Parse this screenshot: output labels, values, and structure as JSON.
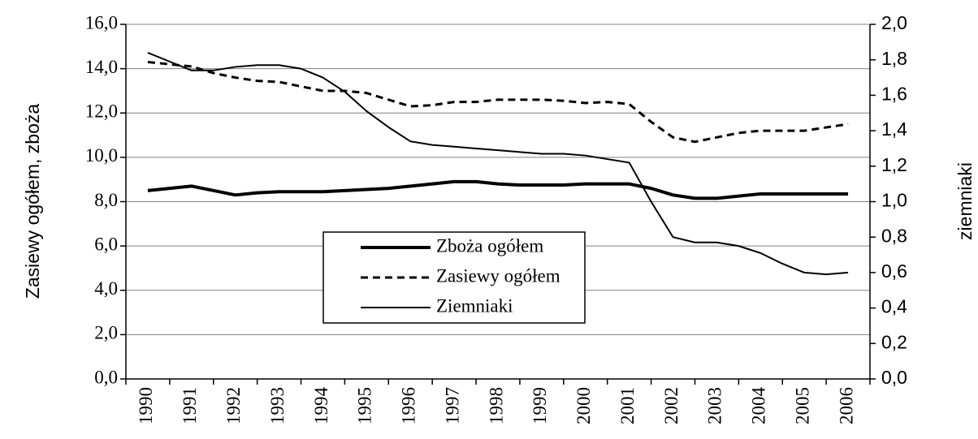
{
  "chart_data": {
    "type": "line",
    "y_label": "Zasiewy ogółem, zboża",
    "y2_label": "ziemniaki",
    "x": [
      1990,
      1990.5,
      1991,
      1991.5,
      1992,
      1992.5,
      1993,
      1993.5,
      1994,
      1994.5,
      1995,
      1995.5,
      1996,
      1996.5,
      1997,
      1997.5,
      1998,
      1998.5,
      1999,
      1999.5,
      2000,
      2000.5,
      2001,
      2001.5,
      2002,
      2002.5,
      2003,
      2003.5,
      2004,
      2004.5,
      2005,
      2005.5,
      2006
    ],
    "xlim": [
      1989.5,
      2006.5
    ],
    "xticks": [
      1990,
      1991,
      1992,
      1993,
      1994,
      1995,
      1996,
      1997,
      1998,
      1999,
      2000,
      2001,
      2002,
      2003,
      2004,
      2005,
      2006
    ],
    "ylim": [
      0,
      16
    ],
    "yticks": [
      {
        "value": 0,
        "label": "0,0"
      },
      {
        "value": 2,
        "label": "2,0"
      },
      {
        "value": 4,
        "label": "4,0"
      },
      {
        "value": 6,
        "label": "6,0"
      },
      {
        "value": 8,
        "label": "8,0"
      },
      {
        "value": 10,
        "label": "10,0"
      },
      {
        "value": 12,
        "label": "12,0"
      },
      {
        "value": 14,
        "label": "14,0"
      },
      {
        "value": 16,
        "label": "16,0"
      }
    ],
    "y2lim": [
      0,
      2
    ],
    "y2ticks": [
      {
        "value": 0,
        "label": "0,0"
      },
      {
        "value": 0.2,
        "label": "0,2"
      },
      {
        "value": 0.4,
        "label": "0,4"
      },
      {
        "value": 0.6,
        "label": "0,6"
      },
      {
        "value": 0.8,
        "label": "0,8"
      },
      {
        "value": 1,
        "label": "1,0"
      },
      {
        "value": 1.2,
        "label": "1,2"
      },
      {
        "value": 1.4,
        "label": "1,4"
      },
      {
        "value": 1.6,
        "label": "1,6"
      },
      {
        "value": 1.8,
        "label": "1,8"
      },
      {
        "value": 2,
        "label": "2,0"
      }
    ],
    "grid": true,
    "series": [
      {
        "name": "Zboża ogółem",
        "color": "#000000",
        "width": 4,
        "dash": "solid",
        "values": [
          8.5,
          8.6,
          8.7,
          8.5,
          8.3,
          8.4,
          8.45,
          8.45,
          8.45,
          8.5,
          8.55,
          8.6,
          8.7,
          8.8,
          8.9,
          8.9,
          8.8,
          8.75,
          8.75,
          8.75,
          8.8,
          8.8,
          8.8,
          8.6,
          8.3,
          8.15,
          8.15,
          8.25,
          8.35,
          8.35,
          8.35,
          8.35,
          8.35
        ]
      },
      {
        "name": "Zasiewy ogółem",
        "color": "#000000",
        "width": 3,
        "dash": "dashed",
        "values": [
          14.3,
          14.2,
          14.1,
          13.8,
          13.6,
          13.45,
          13.4,
          13.2,
          13.0,
          13.0,
          12.9,
          12.6,
          12.3,
          12.35,
          12.5,
          12.5,
          12.6,
          12.6,
          12.6,
          12.55,
          12.45,
          12.5,
          12.4,
          11.6,
          10.9,
          10.7,
          10.9,
          11.1,
          11.2,
          11.2,
          11.2,
          11.35,
          11.5
        ]
      },
      {
        "name": "Ziemniaki",
        "color": "#000000",
        "width": 2,
        "dash": "solid",
        "axis": "y2",
        "values": [
          1.84,
          1.79,
          1.74,
          1.74,
          1.76,
          1.77,
          1.77,
          1.75,
          1.7,
          1.62,
          1.51,
          1.42,
          1.34,
          1.32,
          1.31,
          1.3,
          1.29,
          1.28,
          1.27,
          1.27,
          1.26,
          1.24,
          1.22,
          1.0,
          0.8,
          0.77,
          0.77,
          0.75,
          0.71,
          0.65,
          0.6,
          0.59,
          0.6
        ]
      }
    ]
  }
}
